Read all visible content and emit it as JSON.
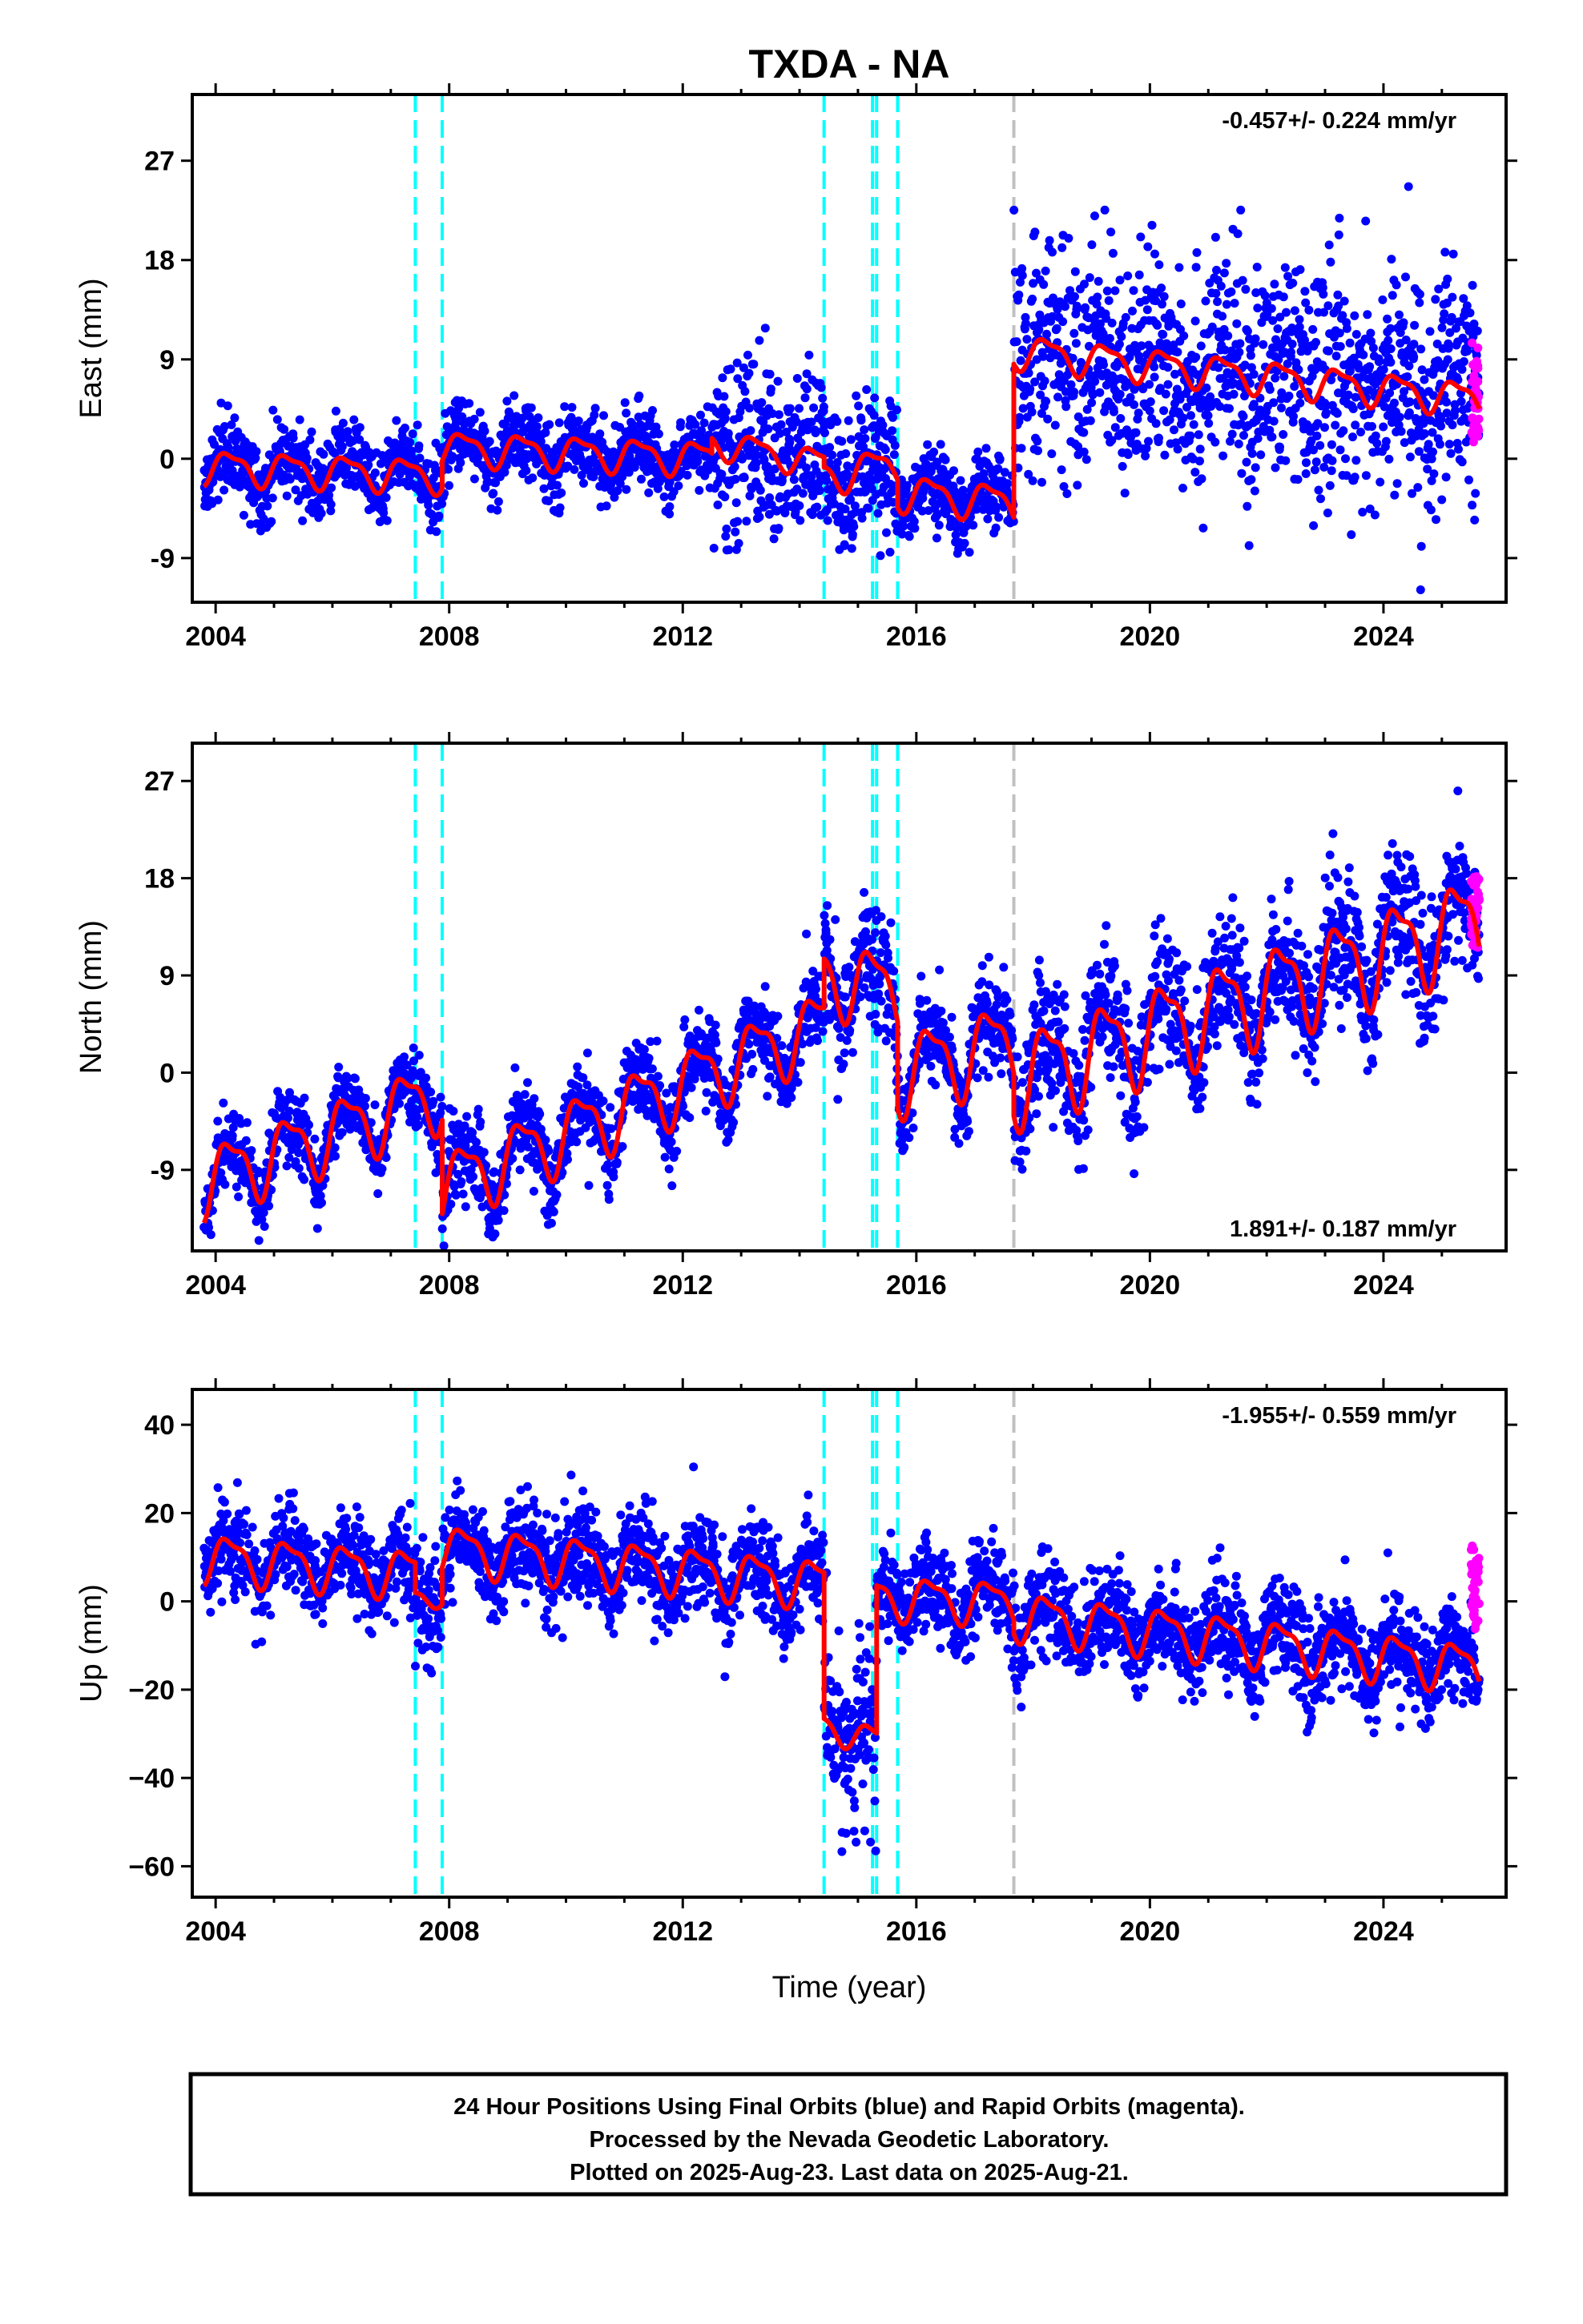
{
  "title": "TXDA - NA",
  "xlabel": "Time (year)",
  "footer": {
    "line1": "24 Hour Positions Using Final Orbits (blue) and Rapid Orbits (magenta).",
    "line2": "Processed by the Nevada Geodetic Laboratory.",
    "line3": "Plotted on 2025-Aug-23. Last data on 2025-Aug-21."
  },
  "colors": {
    "final_orbits": "#0000ff",
    "rapid_orbits": "#ff00ff",
    "model": "#ff0000",
    "event_line": "#00ffff",
    "antenna_change_line": "#c0c0c0"
  },
  "chart_data": [
    {
      "type": "scatter",
      "panel": "east",
      "ylabel": "East (mm)",
      "rate_text": "-0.457+/- 0.224 mm/yr",
      "xlim": [
        2003.6,
        2026.1
      ],
      "ylim": [
        -13,
        33
      ],
      "xticks": [
        2004,
        2008,
        2012,
        2016,
        2020,
        2024
      ],
      "xticklabels": [
        "2004",
        "2008",
        "2012",
        "2016",
        "2020",
        "2024"
      ],
      "yticks": [
        -9,
        0,
        9,
        18,
        27
      ],
      "yticklabels": [
        "-9",
        "0",
        "9",
        "18",
        "27"
      ],
      "vlines_cyan": [
        2007.42,
        2007.88,
        2014.42,
        2015.25,
        2015.32,
        2015.68
      ],
      "vlines_gray": [
        2017.67
      ],
      "segments": [
        {
          "t0": 2003.8,
          "t1": 2007.88,
          "offset": -0.7,
          "rate": -0.2,
          "amp": 1.4,
          "noise": 1.6
        },
        {
          "t0": 2007.88,
          "t1": 2012.5,
          "offset": 1.0,
          "rate": -0.2,
          "amp": 1.4,
          "noise": 1.6
        },
        {
          "t0": 2012.5,
          "t1": 2014.42,
          "offset": 1.5,
          "rate": -1.0,
          "amp": 1.2,
          "noise": 3.8
        },
        {
          "t0": 2014.42,
          "t1": 2015.68,
          "offset": -1.5,
          "rate": 0.8,
          "amp": 1.5,
          "noise": 3.0
        },
        {
          "t0": 2015.68,
          "t1": 2017.67,
          "offset": -3.0,
          "rate": -0.5,
          "amp": 1.5,
          "noise": 1.6
        },
        {
          "t0": 2017.67,
          "t1": 2025.64,
          "offset": 9.8,
          "rate": -0.55,
          "amp": 1.4,
          "noise": 5.0
        }
      ],
      "rapid": {
        "t0": 2025.5,
        "t1": 2025.64,
        "center": 6,
        "spread": 9
      }
    },
    {
      "type": "scatter",
      "panel": "north",
      "ylabel": "North (mm)",
      "rate_text": "1.891+/- 0.187 mm/yr",
      "xlim": [
        2003.6,
        2026.1
      ],
      "ylim": [
        -16.5,
        30.5
      ],
      "xticks": [
        2004,
        2008,
        2012,
        2016,
        2020,
        2024
      ],
      "xticklabels": [
        "2004",
        "2008",
        "2012",
        "2016",
        "2020",
        "2024"
      ],
      "yticks": [
        -9,
        0,
        9,
        18,
        27
      ],
      "yticklabels": [
        "-9",
        "0",
        "9",
        "18",
        "27"
      ],
      "vlines_cyan": [
        2007.42,
        2007.88,
        2014.42,
        2015.25,
        2015.32,
        2015.68
      ],
      "vlines_gray": [
        2017.67
      ],
      "segments": [
        {
          "t0": 2003.8,
          "t1": 2007.88,
          "offset": -10.0,
          "rate": 2.0,
          "amp": 3.0,
          "noise": 1.6
        },
        {
          "t0": 2007.88,
          "t1": 2014.42,
          "offset": -10.5,
          "rate": 2.3,
          "amp": 3.0,
          "noise": 1.8
        },
        {
          "t0": 2014.42,
          "t1": 2015.68,
          "offset": 9.0,
          "rate": -1.0,
          "amp": 3.2,
          "noise": 2.8
        },
        {
          "t0": 2015.68,
          "t1": 2017.67,
          "offset": 0.0,
          "rate": 1.5,
          "amp": 3.5,
          "noise": 2.0
        },
        {
          "t0": 2017.67,
          "t1": 2025.64,
          "offset": -0.5,
          "rate": 1.85,
          "amp": 4.0,
          "noise": 3.0
        }
      ],
      "rapid": {
        "t0": 2025.5,
        "t1": 2025.64,
        "center": 15,
        "spread": 7
      }
    },
    {
      "type": "scatter",
      "panel": "up",
      "ylabel": "Up (mm)",
      "rate_text": "-1.955+/- 0.559 mm/yr",
      "xlim": [
        2003.6,
        2026.1
      ],
      "ylim": [
        -67,
        48
      ],
      "xticks": [
        2004,
        2008,
        2012,
        2016,
        2020,
        2024
      ],
      "xticklabels": [
        "2004",
        "2008",
        "2012",
        "2016",
        "2020",
        "2024"
      ],
      "yticks": [
        -60,
        -40,
        -20,
        0,
        20,
        40
      ],
      "yticklabels": [
        "−60",
        "−40",
        "−20",
        "0",
        "20",
        "40"
      ],
      "vlines_cyan": [
        2007.42,
        2007.88,
        2014.42,
        2015.25,
        2015.32,
        2015.68
      ],
      "vlines_gray": [
        2017.67
      ],
      "segments": [
        {
          "t0": 2003.8,
          "t1": 2007.42,
          "offset": 10.0,
          "rate": -1.0,
          "amp": 5.0,
          "noise": 5.0
        },
        {
          "t0": 2007.42,
          "t1": 2007.88,
          "offset": 1.0,
          "rate": 0.0,
          "amp": 2.0,
          "noise": 6.0
        },
        {
          "t0": 2007.88,
          "t1": 2014.42,
          "offset": 12.0,
          "rate": -1.2,
          "amp": 5.0,
          "noise": 5.5
        },
        {
          "t0": 2014.42,
          "t1": 2015.32,
          "offset": -28.0,
          "rate": -4.0,
          "amp": 3.0,
          "noise": 10.0
        },
        {
          "t0": 2015.32,
          "t1": 2017.67,
          "offset": 1.0,
          "rate": -0.5,
          "amp": 4.5,
          "noise": 5.0
        },
        {
          "t0": 2017.67,
          "t1": 2025.64,
          "offset": -3.0,
          "rate": -1.5,
          "amp": 5.0,
          "noise": 5.5
        }
      ],
      "rapid": {
        "t0": 2025.5,
        "t1": 2025.64,
        "center": 3,
        "spread": 20
      }
    }
  ]
}
